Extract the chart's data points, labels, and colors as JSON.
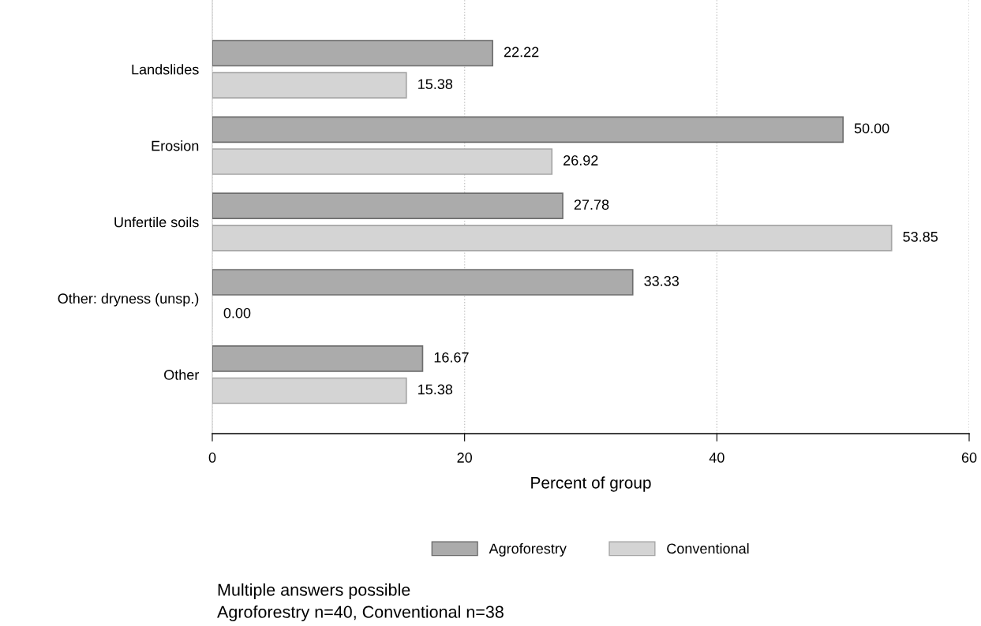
{
  "chart_data": {
    "type": "bar",
    "orientation": "horizontal",
    "categories": [
      "Landslides",
      "Erosion",
      "Unfertile soils",
      "Other: dryness (unsp.)",
      "Other"
    ],
    "series": [
      {
        "name": "Agroforestry",
        "color": "#ababab",
        "values": [
          22.22,
          50.0,
          27.78,
          33.33,
          16.67
        ],
        "value_labels": [
          "22.22",
          "50.00",
          "27.78",
          "33.33",
          "16.67"
        ]
      },
      {
        "name": "Conventional",
        "color": "#d4d4d4",
        "values": [
          15.38,
          26.92,
          53.85,
          0.0,
          15.38
        ],
        "value_labels": [
          "15.38",
          "26.92",
          "53.85",
          "0.00",
          "15.38"
        ]
      }
    ],
    "xlabel": "Percent of group",
    "xlim": [
      0,
      60
    ],
    "xticks": [
      0,
      20,
      40,
      60
    ],
    "grid": "x",
    "legend": "bottom",
    "annotations": [
      "Multiple answers possible",
      "Agroforestry n=40, Conventional n=38"
    ]
  }
}
